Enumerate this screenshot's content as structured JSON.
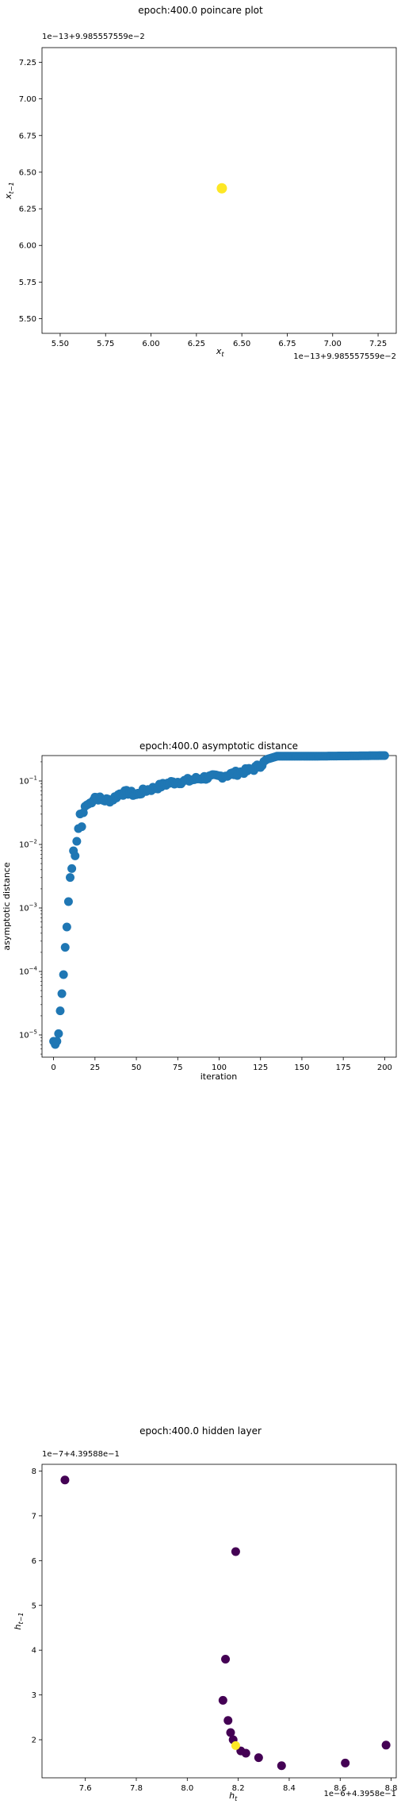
{
  "chart_data": [
    {
      "type": "scatter",
      "title": "epoch:400.0 poincare plot",
      "xlabel": "x_t",
      "ylabel": "x_{t-1}",
      "x_offset_text": "1e−13+9.985557559e−2",
      "y_offset_text": "1e−13+9.985557559e−2",
      "xlim": [
        5.4,
        7.35
      ],
      "ylim": [
        5.4,
        7.35
      ],
      "xticks": [
        "5.50",
        "5.75",
        "6.00",
        "6.25",
        "6.50",
        "6.75",
        "7.00",
        "7.25"
      ],
      "yticks": [
        "5.50",
        "5.75",
        "6.00",
        "6.25",
        "6.50",
        "6.75",
        "7.00",
        "7.25"
      ],
      "points": [
        {
          "x": 6.39,
          "y": 6.39,
          "color": "#fde725"
        }
      ],
      "grid": false
    },
    {
      "type": "scatter",
      "title": "epoch:400.0 asymptotic distance",
      "xlabel": "iteration",
      "ylabel": "asymptotic distance",
      "yscale": "log",
      "xlim": [
        -7,
        207
      ],
      "ylim_log10": [
        -5.35,
        -0.6
      ],
      "xticks": [
        "0",
        "25",
        "50",
        "75",
        "100",
        "125",
        "150",
        "175",
        "200"
      ],
      "yticks": [
        {
          "base": "10",
          "exp": "−5"
        },
        {
          "base": "10",
          "exp": "−4"
        },
        {
          "base": "10",
          "exp": "−3"
        },
        {
          "base": "10",
          "exp": "−2"
        },
        {
          "base": "10",
          "exp": "−1"
        }
      ],
      "color": "#1f77b4",
      "keypoints_log10": [
        [
          0,
          -5.1
        ],
        [
          1,
          -5.15
        ],
        [
          2,
          -5.1
        ],
        [
          3,
          -4.98
        ],
        [
          4,
          -4.62
        ],
        [
          5,
          -4.35
        ],
        [
          6,
          -4.05
        ],
        [
          7,
          -3.62
        ],
        [
          8,
          -3.3
        ],
        [
          9,
          -2.9
        ],
        [
          10,
          -2.52
        ],
        [
          11,
          -2.38
        ],
        [
          12,
          -2.1
        ],
        [
          13,
          -2.18
        ],
        [
          14,
          -1.95
        ],
        [
          15,
          -1.75
        ],
        [
          16,
          -1.52
        ],
        [
          17,
          -1.72
        ],
        [
          18,
          -1.5
        ],
        [
          19,
          -1.4
        ],
        [
          20,
          -1.38
        ],
        [
          22,
          -1.35
        ],
        [
          25,
          -1.25
        ],
        [
          30,
          -1.3
        ],
        [
          35,
          -1.3
        ],
        [
          40,
          -1.2
        ],
        [
          45,
          -1.18
        ],
        [
          50,
          -1.22
        ],
        [
          55,
          -1.15
        ],
        [
          60,
          -1.12
        ],
        [
          70,
          -1.03
        ],
        [
          80,
          -1.0
        ],
        [
          90,
          -0.95
        ],
        [
          100,
          -0.93
        ],
        [
          110,
          -0.88
        ],
        [
          120,
          -0.82
        ],
        [
          125,
          -0.75
        ],
        [
          130,
          -0.65
        ],
        [
          135,
          -0.61
        ],
        [
          140,
          -0.61
        ],
        [
          160,
          -0.61
        ],
        [
          200,
          -0.6
        ]
      ],
      "grid": false
    },
    {
      "type": "scatter",
      "title": "epoch:400.0 hidden layer",
      "xlabel": "h_t",
      "ylabel": "h_{t-1}",
      "x_offset_text": "1e−6+4.3958e−1",
      "y_offset_text": "1e−7+4.39588e−1",
      "xlim": [
        7.43,
        8.82
      ],
      "ylim": [
        1.15,
        8.15
      ],
      "xticks": [
        "7.6",
        "7.8",
        "8.0",
        "8.2",
        "8.4",
        "8.6",
        "8.8"
      ],
      "yticks": [
        "2",
        "3",
        "4",
        "5",
        "6",
        "7",
        "8"
      ],
      "colors": {
        "dark": "#440154",
        "highlight": "#fde725"
      },
      "points": [
        {
          "x": 7.52,
          "y": 7.8,
          "c": "dark"
        },
        {
          "x": 8.19,
          "y": 6.2,
          "c": "dark"
        },
        {
          "x": 8.15,
          "y": 3.8,
          "c": "dark"
        },
        {
          "x": 8.14,
          "y": 2.88,
          "c": "dark"
        },
        {
          "x": 8.16,
          "y": 2.43,
          "c": "dark"
        },
        {
          "x": 8.17,
          "y": 2.16,
          "c": "dark"
        },
        {
          "x": 8.18,
          "y": 2.0,
          "c": "dark"
        },
        {
          "x": 8.21,
          "y": 1.75,
          "c": "dark"
        },
        {
          "x": 8.23,
          "y": 1.7,
          "c": "dark"
        },
        {
          "x": 8.28,
          "y": 1.6,
          "c": "dark"
        },
        {
          "x": 8.37,
          "y": 1.42,
          "c": "dark"
        },
        {
          "x": 8.62,
          "y": 1.48,
          "c": "dark"
        },
        {
          "x": 8.78,
          "y": 1.88,
          "c": "dark"
        },
        {
          "x": 8.19,
          "y": 1.87,
          "c": "highlight"
        }
      ],
      "grid": false
    }
  ]
}
